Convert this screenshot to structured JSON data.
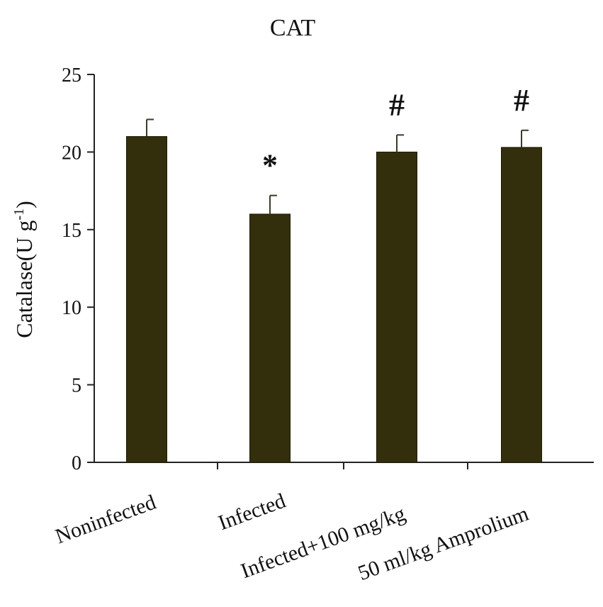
{
  "chart_data": {
    "type": "bar",
    "title": "CAT",
    "xlabel": "",
    "ylabel": "Catalase(U g",
    "ylabel_superscript": "-1",
    "ylabel_suffix": ")",
    "ylim": [
      0,
      25
    ],
    "yticks": [
      "0",
      "5",
      "10",
      "15",
      "20",
      "25"
    ],
    "grid": false,
    "categories": [
      "Noninfected",
      "Infected",
      "Infected+100 mg/kg",
      "50 ml/kg Amprolium"
    ],
    "values": [
      21.0,
      16.0,
      20.0,
      20.3
    ],
    "errors": [
      1.1,
      1.2,
      1.1,
      1.1
    ],
    "annotations": [
      "",
      "*",
      "#",
      "#"
    ],
    "bar_color": "#332f0c",
    "axis_color": "#222222"
  }
}
